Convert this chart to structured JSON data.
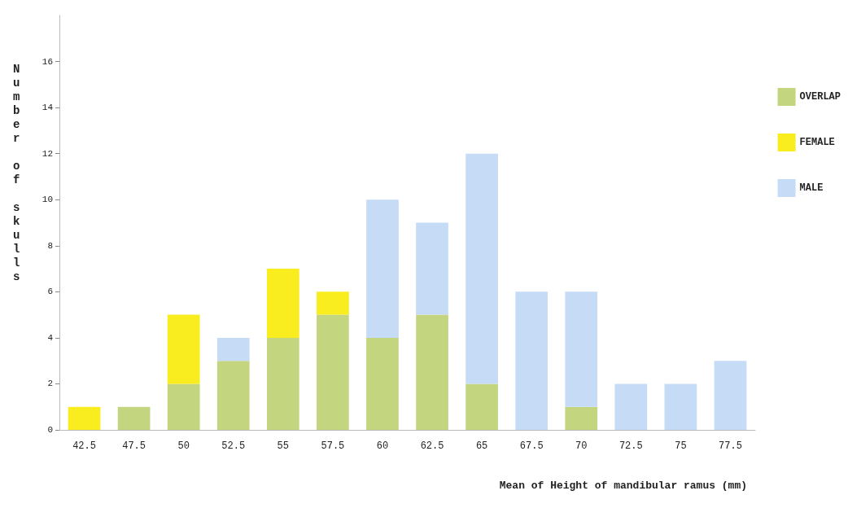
{
  "chart_data": {
    "type": "bar",
    "stacked": true,
    "xlabel": "Mean of Height of mandibular ramus (mm)",
    "ylabel": "Number of skulls",
    "categories": [
      "42.5",
      "47.5",
      "50",
      "52.5",
      "55",
      "57.5",
      "60",
      "62.5",
      "65",
      "67.5",
      "70",
      "72.5",
      "75",
      "77.5"
    ],
    "series": [
      {
        "name": "OVERLAP",
        "color": "#c3d57f",
        "values": [
          0,
          1,
          2,
          3,
          4,
          5,
          4,
          5,
          2,
          0,
          1,
          0,
          0,
          0
        ]
      },
      {
        "name": "FEMALE",
        "color": "#f9ec1f",
        "values": [
          1,
          0,
          3,
          0,
          3,
          1,
          0,
          0,
          0,
          0,
          0,
          0,
          0,
          0
        ]
      },
      {
        "name": "MALE",
        "color": "#c5dbf6",
        "values": [
          0,
          0,
          0,
          1,
          0,
          0,
          6,
          4,
          10,
          6,
          5,
          2,
          2,
          3
        ]
      }
    ],
    "ylim": [
      0,
      18
    ],
    "yticks": [
      0,
      2,
      4,
      6,
      8,
      10,
      12,
      14,
      16
    ],
    "grid": false,
    "legend": "right"
  }
}
